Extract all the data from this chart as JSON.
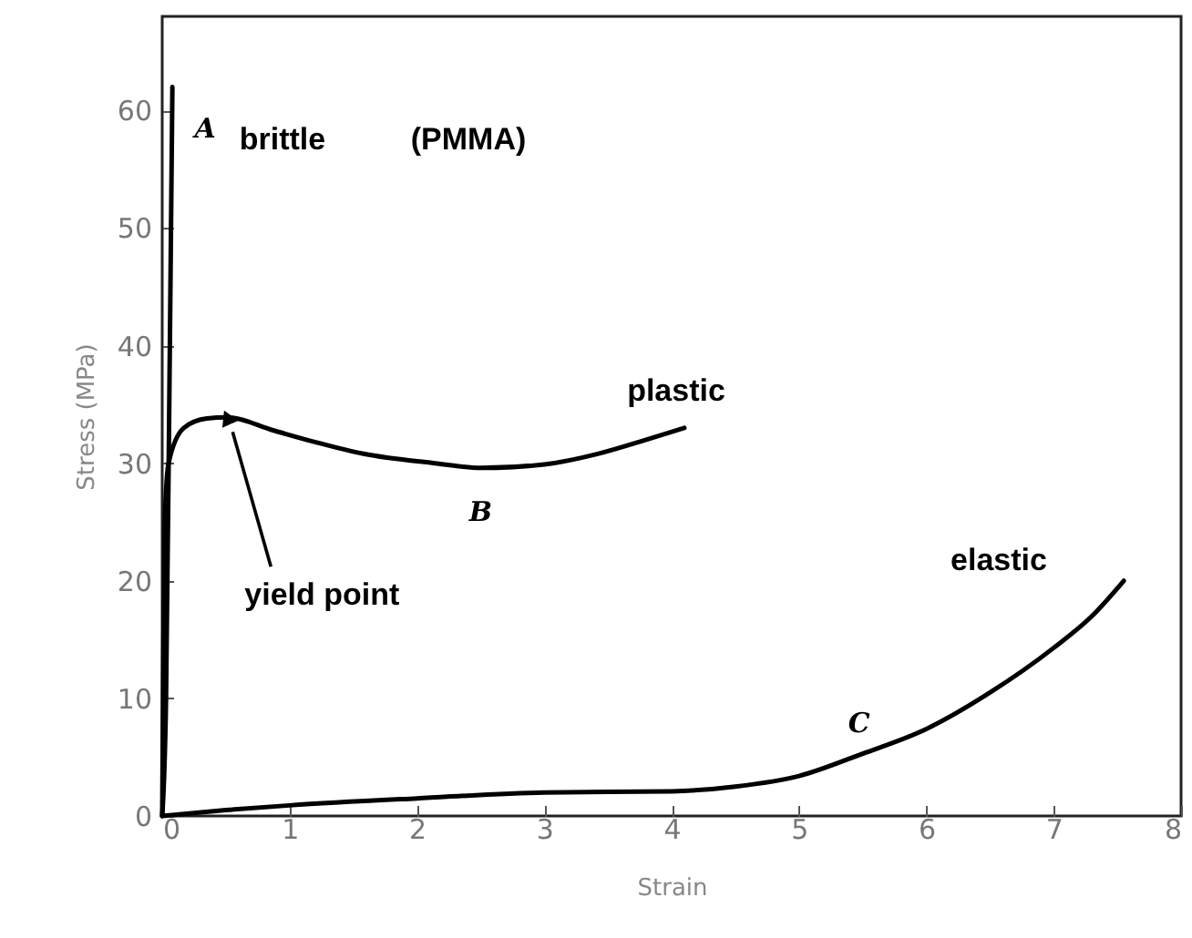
{
  "chart_data": {
    "type": "line",
    "xlabel": "Strain",
    "ylabel": "Stress (MPa)",
    "xlim": [
      0,
      8
    ],
    "ylim": [
      0,
      68
    ],
    "xticks": [
      0,
      1,
      2,
      3,
      4,
      5,
      6,
      7,
      8
    ],
    "yticks": [
      0,
      10,
      20,
      30,
      40,
      50,
      60
    ],
    "marker": "none",
    "line_style": "solid",
    "series": [
      {
        "name": "A",
        "color": "#000000",
        "x": [
          0,
          0.03,
          0.06,
          0.08
        ],
        "values": [
          0,
          10,
          40,
          62
        ]
      },
      {
        "name": "B",
        "color": "#000000",
        "x": [
          0,
          0.01,
          0.02,
          0.05,
          0.17,
          0.35,
          0.51,
          0.87,
          1.2,
          1.58,
          2.14,
          2.5,
          3.0,
          3.42,
          3.8,
          4.1
        ],
        "values": [
          0,
          15,
          25,
          30,
          33,
          33.8,
          33.9,
          32.8,
          31.8,
          30.8,
          30,
          29.6,
          29.9,
          30.8,
          32,
          33
        ]
      },
      {
        "name": "C",
        "color": "#000000",
        "x": [
          0,
          0.5,
          1,
          2,
          3,
          4,
          4.5,
          5,
          5.5,
          6,
          6.5,
          7,
          7.3,
          7.55
        ],
        "values": [
          0,
          0.5,
          0.9,
          1.5,
          2.0,
          2.1,
          2.5,
          3.4,
          5.3,
          7.4,
          10.5,
          14.3,
          17,
          20
        ]
      }
    ],
    "annotations": [
      "brittle",
      "(PMMA)",
      "plastic",
      {
        "text": "yield point",
        "x": 0.51,
        "y": 33.9
      },
      "elastic"
    ]
  }
}
